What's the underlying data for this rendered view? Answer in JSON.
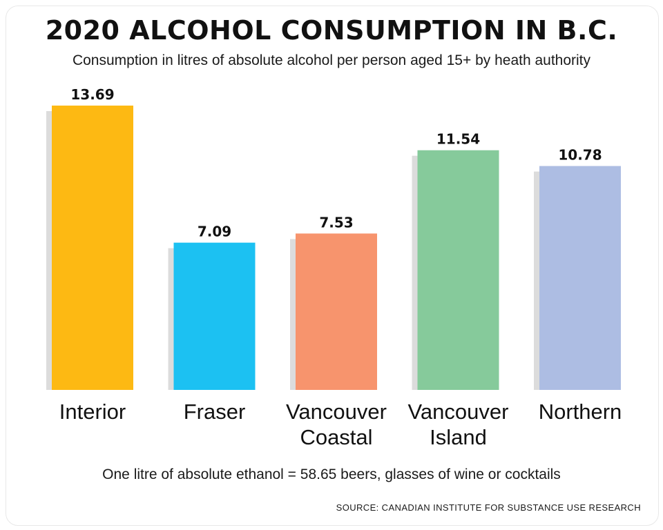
{
  "chart_data": {
    "type": "bar",
    "title": "2020 ALCOHOL CONSUMPTION IN B.C.",
    "subtitle": "Consumption in litres of absolute alcohol per person aged 15+ by heath authority",
    "categories": [
      [
        "Interior"
      ],
      [
        "Fraser"
      ],
      [
        "Vancouver",
        "Coastal"
      ],
      [
        "Vancouver",
        "Island"
      ],
      [
        "Northern"
      ]
    ],
    "values": [
      13.69,
      7.09,
      7.53,
      11.54,
      10.78
    ],
    "value_labels": [
      "13.69",
      "7.09",
      "7.53",
      "11.54",
      "10.78"
    ],
    "colors": [
      "#fdb913",
      "#1cc1f2",
      "#f7946d",
      "#86ca9b",
      "#adbde3"
    ],
    "shadow_color": "#dcdcdc",
    "ylim": [
      0,
      13.69
    ],
    "grid": false,
    "legend": "none",
    "xlabel": "",
    "ylabel": ""
  },
  "footnote": "One litre of absolute ethanol = 58.65 beers, glasses of wine or cocktails",
  "source": "SOURCE: CANADIAN INSTITUTE FOR SUBSTANCE USE RESEARCH"
}
